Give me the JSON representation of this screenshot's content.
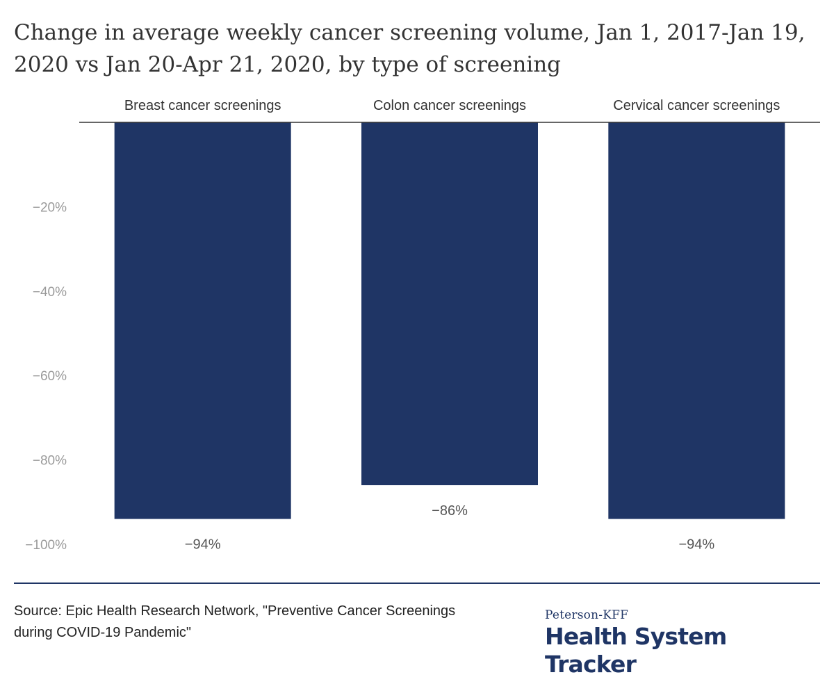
{
  "title": "Change in average weekly cancer screening volume, Jan 1, 2017-Jan 19, 2020 vs Jan 20-Apr 21, 2020, by type of screening",
  "chart_data": {
    "type": "bar",
    "orientation": "vertical",
    "categories": [
      "Breast cancer screenings",
      "Colon cancer screenings",
      "Cervical cancer screenings"
    ],
    "values": [
      -94,
      -86,
      -94
    ],
    "data_labels": [
      "−94%",
      "−86%",
      "−94%"
    ],
    "yticks": [
      -20,
      -40,
      -60,
      -80,
      -100
    ],
    "ytick_labels": [
      "−20%",
      "−40%",
      "−60%",
      "−80%",
      "−100%"
    ],
    "ylim": [
      -100,
      0
    ],
    "category_labels_position": "top",
    "grid": false,
    "legend": "none",
    "bar_color": "#1f3565"
  },
  "footer": {
    "source": "Source: Epic Health Research Network, \"Preventive Cancer Screenings during COVID-19 Pandemic\"",
    "brand_small": "Peterson-KFF",
    "brand_large": "Health System Tracker"
  },
  "colors": {
    "bar": "#1f3565",
    "axis_text": "#9a9a9a",
    "label_text": "#333333",
    "brand": "#1f3565"
  }
}
